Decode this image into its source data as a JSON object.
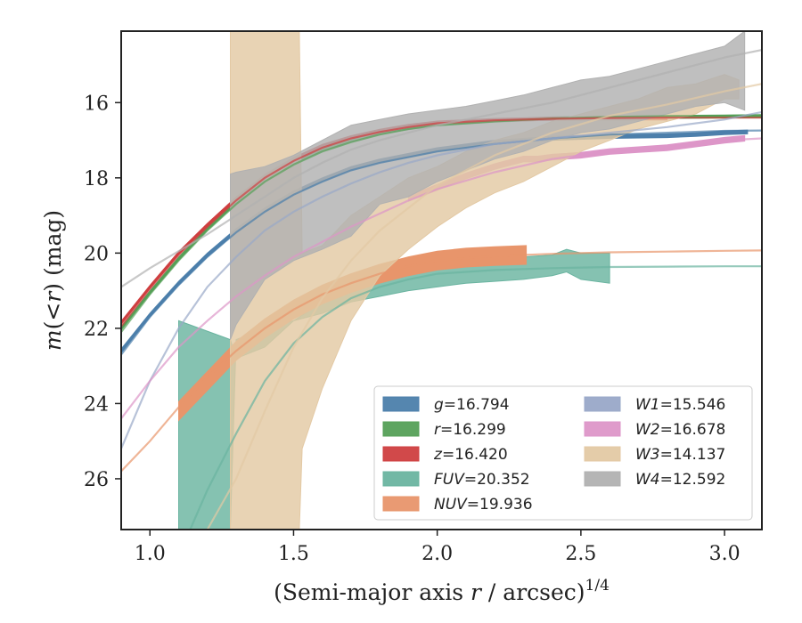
{
  "chart_data": {
    "type": "line",
    "title": "",
    "xlabel": "(Semi-major axis r / arcsec)^1/4",
    "ylabel": "m(<r) (mag)",
    "xlim": [
      0.9,
      3.13
    ],
    "ylim": [
      27.35,
      14.1
    ],
    "y_inverted": true,
    "x_ticks": [
      1.0,
      1.5,
      2.0,
      2.5,
      3.0
    ],
    "x_tick_labels": [
      "1.0",
      "1.5",
      "2.0",
      "2.5",
      "3.0"
    ],
    "y_ticks": [
      16,
      18,
      20,
      22,
      24,
      26
    ],
    "y_tick_labels": [
      "16",
      "18",
      "20",
      "22",
      "24",
      "26"
    ],
    "grid": false,
    "legend_position": "lower-right",
    "legend_columns": 2,
    "series": [
      {
        "name": "g = 16.794",
        "color": "#4c7fab",
        "model_x": [
          0.9,
          1.0,
          1.1,
          1.2,
          1.3,
          1.4,
          1.5,
          1.6,
          1.7,
          1.8,
          1.9,
          2.0,
          2.2,
          2.4,
          2.6,
          2.8,
          3.0,
          3.13
        ],
        "model_y": [
          22.7,
          21.7,
          20.85,
          20.1,
          19.45,
          18.9,
          18.45,
          18.1,
          17.8,
          17.6,
          17.45,
          17.3,
          17.1,
          16.95,
          16.85,
          16.8,
          16.75,
          16.74
        ],
        "band_x": [
          0.9,
          1.0,
          1.1,
          1.2,
          1.3,
          1.4,
          1.5,
          1.6,
          1.7,
          1.8,
          1.9,
          2.0,
          2.2,
          2.4,
          2.6,
          2.8,
          2.9,
          3.0,
          3.08
        ],
        "band_y": [
          22.6,
          21.65,
          20.8,
          20.05,
          19.4,
          18.85,
          18.4,
          18.05,
          17.75,
          17.55,
          17.4,
          17.25,
          17.05,
          16.95,
          16.9,
          16.88,
          16.85,
          16.8,
          16.78
        ],
        "band_width": 0.1
      },
      {
        "name": "r = 16.299",
        "color": "#55a057",
        "model_x": [
          0.9,
          1.0,
          1.1,
          1.2,
          1.3,
          1.4,
          1.5,
          1.6,
          1.7,
          1.8,
          1.9,
          2.0,
          2.2,
          2.4,
          2.6,
          2.8,
          3.0,
          3.13
        ],
        "model_y": [
          22.1,
          21.1,
          20.2,
          19.4,
          18.7,
          18.1,
          17.65,
          17.3,
          17.05,
          16.85,
          16.7,
          16.6,
          16.5,
          16.42,
          16.38,
          16.36,
          16.35,
          16.34
        ],
        "band_x": [
          0.9,
          1.0,
          1.1,
          1.2,
          1.3,
          1.4,
          1.5,
          1.6,
          1.7,
          1.8,
          1.9,
          2.0,
          2.2,
          2.4,
          2.6,
          2.8,
          3.0,
          3.13
        ],
        "band_y": [
          22.0,
          21.05,
          20.15,
          19.35,
          18.65,
          18.05,
          17.6,
          17.25,
          17.0,
          16.8,
          16.68,
          16.58,
          16.48,
          16.42,
          16.4,
          16.38,
          16.37,
          16.36
        ],
        "band_width": 0.08
      },
      {
        "name": "z = 16.420",
        "color": "#cf3f40",
        "model_x": [
          0.9,
          1.0,
          1.1,
          1.2,
          1.3,
          1.4,
          1.5,
          1.6,
          1.7,
          1.8,
          1.9,
          2.0,
          2.2,
          2.4,
          2.6,
          2.8,
          3.0,
          3.13
        ],
        "model_y": [
          21.95,
          20.95,
          20.05,
          19.3,
          18.6,
          18.0,
          17.55,
          17.2,
          16.95,
          16.78,
          16.65,
          16.55,
          16.47,
          16.43,
          16.41,
          16.4,
          16.4,
          16.4
        ],
        "band_x": [
          0.9,
          1.0,
          1.1,
          1.2,
          1.3,
          1.4,
          1.5,
          1.6,
          1.7,
          1.8,
          1.9,
          2.0,
          2.2,
          2.4,
          2.6,
          2.8
        ],
        "band_y": [
          21.85,
          20.9,
          20.0,
          19.25,
          18.55,
          17.95,
          17.5,
          17.15,
          16.92,
          16.75,
          16.62,
          16.53,
          16.46,
          16.43,
          16.42,
          16.42
        ],
        "band_width": 0.08
      },
      {
        "name": "FUV = 20.352",
        "color": "#6ab4a0",
        "model_x": [
          1.14,
          1.2,
          1.3,
          1.4,
          1.5,
          1.6,
          1.7,
          1.8,
          1.9,
          2.0,
          2.2,
          2.4,
          2.6,
          2.8,
          3.0,
          3.13
        ],
        "model_y": [
          27.35,
          26.3,
          24.8,
          23.4,
          22.4,
          21.7,
          21.2,
          20.9,
          20.7,
          20.55,
          20.45,
          20.4,
          20.37,
          20.36,
          20.35,
          20.35
        ],
        "band_x": [
          1.1,
          1.28,
          1.3,
          1.4,
          1.5,
          1.6,
          1.7,
          1.8,
          1.9,
          2.0,
          2.1,
          2.2,
          2.3,
          2.4,
          2.45,
          2.5,
          2.6
        ],
        "band_upper": [
          21.8,
          22.3,
          22.8,
          22.5,
          21.8,
          21.3,
          20.85,
          20.6,
          20.4,
          20.25,
          20.2,
          20.15,
          20.1,
          20.05,
          19.9,
          20.0,
          20.0
        ],
        "band_lower": [
          27.35,
          27.35,
          22.3,
          22.0,
          21.8,
          21.6,
          21.3,
          21.15,
          21.0,
          20.9,
          20.8,
          20.75,
          20.7,
          20.6,
          20.5,
          20.7,
          20.8
        ]
      },
      {
        "name": "NUV = 19.936",
        "color": "#e8956b",
        "model_x": [
          0.9,
          1.0,
          1.1,
          1.2,
          1.3,
          1.4,
          1.5,
          1.6,
          1.7,
          1.8,
          1.9,
          2.0,
          2.2,
          2.4,
          2.6,
          2.8,
          3.0,
          3.13
        ],
        "model_y": [
          25.8,
          25.0,
          24.1,
          23.3,
          22.6,
          22.0,
          21.5,
          21.1,
          20.8,
          20.55,
          20.35,
          20.2,
          20.08,
          20.02,
          19.98,
          19.96,
          19.94,
          19.93
        ],
        "band_x": [
          1.1,
          1.2,
          1.3,
          1.4,
          1.5,
          1.6,
          1.7,
          1.8,
          1.9,
          2.0,
          2.1,
          2.2,
          2.31
        ],
        "band_y": [
          24.2,
          23.4,
          22.6,
          22.0,
          21.5,
          21.1,
          20.8,
          20.55,
          20.35,
          20.2,
          20.12,
          20.08,
          20.05
        ],
        "band_width": 0.5
      },
      {
        "name": "W1 = 15.546",
        "color": "#99a8c8",
        "model_x": [
          0.9,
          1.0,
          1.1,
          1.2,
          1.3,
          1.4,
          1.5,
          1.6,
          1.7,
          1.8,
          1.9,
          2.0,
          2.2,
          2.4,
          2.6,
          2.8,
          3.0,
          3.13
        ],
        "model_y": [
          25.2,
          23.4,
          22.0,
          20.9,
          20.1,
          19.4,
          18.9,
          18.5,
          18.15,
          17.85,
          17.6,
          17.4,
          17.1,
          16.95,
          16.8,
          16.65,
          16.45,
          16.25
        ]
      },
      {
        "name": "W2 = 16.678",
        "color": "#dd96c8",
        "model_x": [
          0.9,
          1.0,
          1.1,
          1.2,
          1.3,
          1.4,
          1.5,
          1.6,
          1.7,
          1.8,
          1.9,
          2.0,
          2.2,
          2.4,
          2.6,
          2.8,
          3.0,
          3.13
        ],
        "model_y": [
          24.4,
          23.4,
          22.5,
          21.8,
          21.15,
          20.6,
          20.1,
          19.7,
          19.3,
          18.95,
          18.6,
          18.3,
          17.85,
          17.5,
          17.3,
          17.15,
          17.0,
          16.95
        ],
        "band_x": [
          1.9,
          2.0,
          2.1,
          2.2,
          2.3,
          2.35,
          2.4,
          2.5,
          2.6,
          2.7,
          2.8,
          2.9,
          3.0,
          3.07
        ],
        "band_y": [
          18.55,
          18.25,
          17.95,
          17.7,
          17.5,
          17.5,
          17.45,
          17.4,
          17.3,
          17.25,
          17.2,
          17.1,
          17.0,
          16.95
        ],
        "band_width": 0.15
      },
      {
        "name": "W3 = 14.137",
        "color": "#e3c9a4",
        "model_x": [
          1.2,
          1.3,
          1.4,
          1.5,
          1.6,
          1.7,
          1.8,
          1.9,
          2.0,
          2.2,
          2.4,
          2.6,
          2.8,
          3.0,
          3.13
        ],
        "model_y": [
          27.35,
          26.0,
          24.2,
          22.5,
          21.2,
          20.2,
          19.4,
          18.8,
          18.2,
          17.4,
          16.8,
          16.35,
          16.05,
          15.7,
          15.5
        ],
        "band_x": [
          1.28,
          1.3,
          1.4,
          1.5,
          1.52,
          1.53,
          1.6,
          1.7,
          1.8,
          1.9,
          2.0,
          2.1,
          2.2,
          2.3,
          2.4,
          2.5,
          2.6,
          2.7,
          2.8,
          2.9,
          3.0,
          3.05
        ],
        "band_upper": [
          14.1,
          14.1,
          14.1,
          14.1,
          14.1,
          20.0,
          19.8,
          19.0,
          18.5,
          18.0,
          17.7,
          17.3,
          17.0,
          16.8,
          16.5,
          16.3,
          16.1,
          15.9,
          15.6,
          15.5,
          15.25,
          15.4
        ],
        "band_lower": [
          27.35,
          27.35,
          27.35,
          27.35,
          27.35,
          25.2,
          23.6,
          21.8,
          20.6,
          19.9,
          19.3,
          18.8,
          18.4,
          18.1,
          17.7,
          17.3,
          17.0,
          16.7,
          16.5,
          16.3,
          15.9,
          15.9
        ]
      },
      {
        "name": "W4 = 12.592",
        "color": "#b1b1b1",
        "model_x": [
          0.9,
          1.0,
          1.1,
          1.2,
          1.3,
          1.4,
          1.5,
          1.6,
          1.7,
          1.8,
          1.9,
          2.0,
          2.2,
          2.4,
          2.6,
          2.8,
          3.0,
          3.13
        ],
        "model_y": [
          20.9,
          20.4,
          19.95,
          19.5,
          19.0,
          18.5,
          18.0,
          17.6,
          17.25,
          17.0,
          16.8,
          16.6,
          16.3,
          16.0,
          15.6,
          15.2,
          14.8,
          14.6
        ],
        "band_x": [
          1.28,
          1.3,
          1.4,
          1.5,
          1.6,
          1.7,
          1.8,
          1.9,
          2.0,
          2.1,
          2.2,
          2.3,
          2.4,
          2.5,
          2.6,
          2.7,
          2.8,
          2.9,
          3.0,
          3.07
        ],
        "band_upper": [
          17.9,
          17.85,
          17.7,
          17.4,
          17.0,
          16.6,
          16.45,
          16.3,
          16.2,
          16.1,
          15.95,
          15.8,
          15.6,
          15.4,
          15.3,
          15.1,
          14.9,
          14.7,
          14.5,
          14.1
        ],
        "band_lower": [
          22.3,
          21.9,
          20.7,
          20.2,
          19.9,
          19.55,
          18.7,
          18.5,
          18.1,
          17.8,
          17.5,
          17.3,
          17.0,
          16.8,
          16.7,
          16.5,
          16.3,
          16.1,
          16.0,
          16.2
        ]
      }
    ]
  }
}
